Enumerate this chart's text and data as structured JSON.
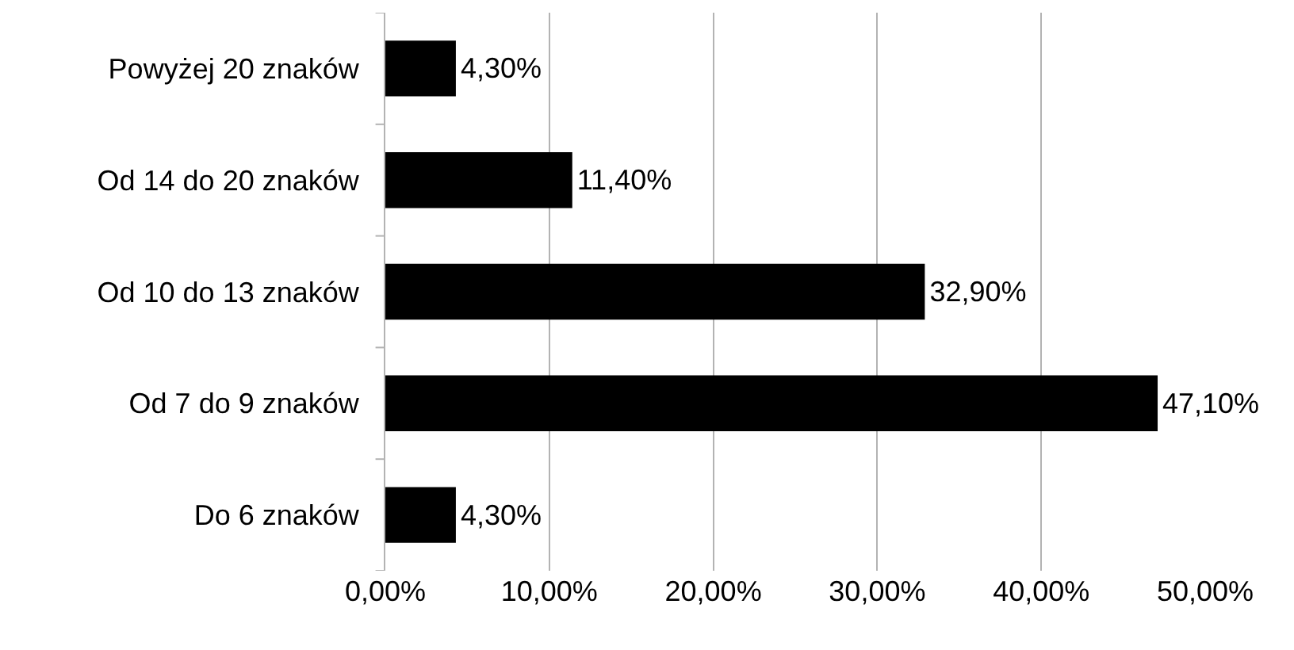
{
  "chart_data": {
    "type": "bar",
    "orientation": "horizontal",
    "categories": [
      "Powyżej 20 znaków",
      "Od 14 do 20 znaków",
      "Od 10 do 13 znaków",
      "Od 7 do 9 znaków",
      "Do 6 znaków"
    ],
    "values": [
      4.3,
      11.4,
      32.9,
      47.1,
      4.3
    ],
    "value_labels": [
      "4,30%",
      "11,40%",
      "32,90%",
      "47,10%",
      "4,30%"
    ],
    "color": "#000000",
    "xlim": [
      0,
      50
    ],
    "xticks": [
      {
        "value": 0,
        "label": "0,00%"
      },
      {
        "value": 10,
        "label": "10,00%"
      },
      {
        "value": 20,
        "label": "20,00%"
      },
      {
        "value": 30,
        "label": "30,00%"
      },
      {
        "value": 40,
        "label": "40,00%"
      },
      {
        "value": 50,
        "label": "50,00%"
      }
    ],
    "grid": "x"
  }
}
